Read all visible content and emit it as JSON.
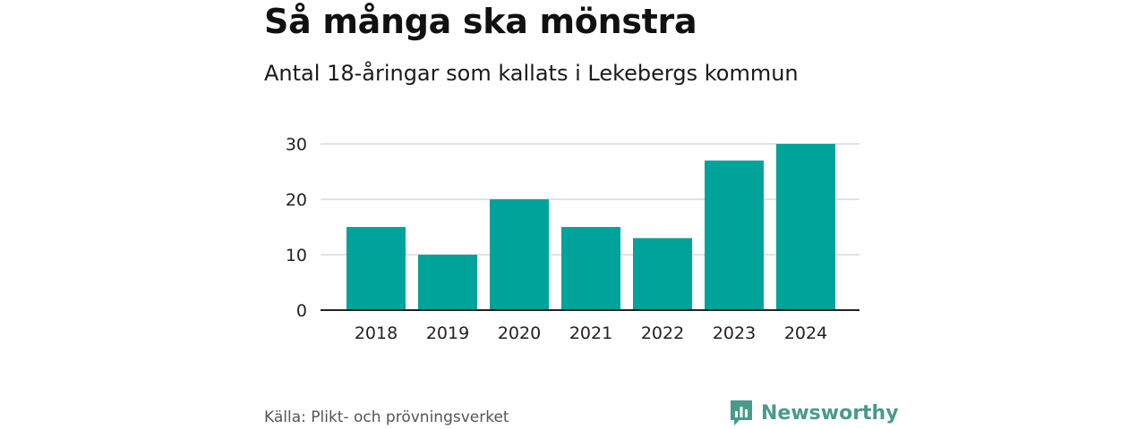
{
  "header": {
    "title": "Så många ska mönstra",
    "subtitle": "Antal 18-åringar som kallats i Lekebergs kommun"
  },
  "chart_data": {
    "type": "bar",
    "title": "Så många ska mönstra",
    "subtitle": "Antal 18-åringar som kallats i Lekebergs kommun",
    "categories": [
      "2018",
      "2019",
      "2020",
      "2021",
      "2022",
      "2023",
      "2024"
    ],
    "values": [
      15,
      10,
      20,
      15,
      13,
      27,
      30
    ],
    "yticks": [
      0,
      10,
      20,
      30
    ],
    "ylim": [
      0,
      30
    ],
    "xlabel": "",
    "ylabel": "",
    "grid": true,
    "bar_color": "#00a39a",
    "grid_color": "#d9d9d9",
    "axis_color": "#222222"
  },
  "footer": {
    "source": "Källa: Plikt- och prövningsverket",
    "brand": "Newsworthy",
    "brand_color": "#4a9a8c",
    "brand_icon": "newsworthy-logo-icon"
  }
}
